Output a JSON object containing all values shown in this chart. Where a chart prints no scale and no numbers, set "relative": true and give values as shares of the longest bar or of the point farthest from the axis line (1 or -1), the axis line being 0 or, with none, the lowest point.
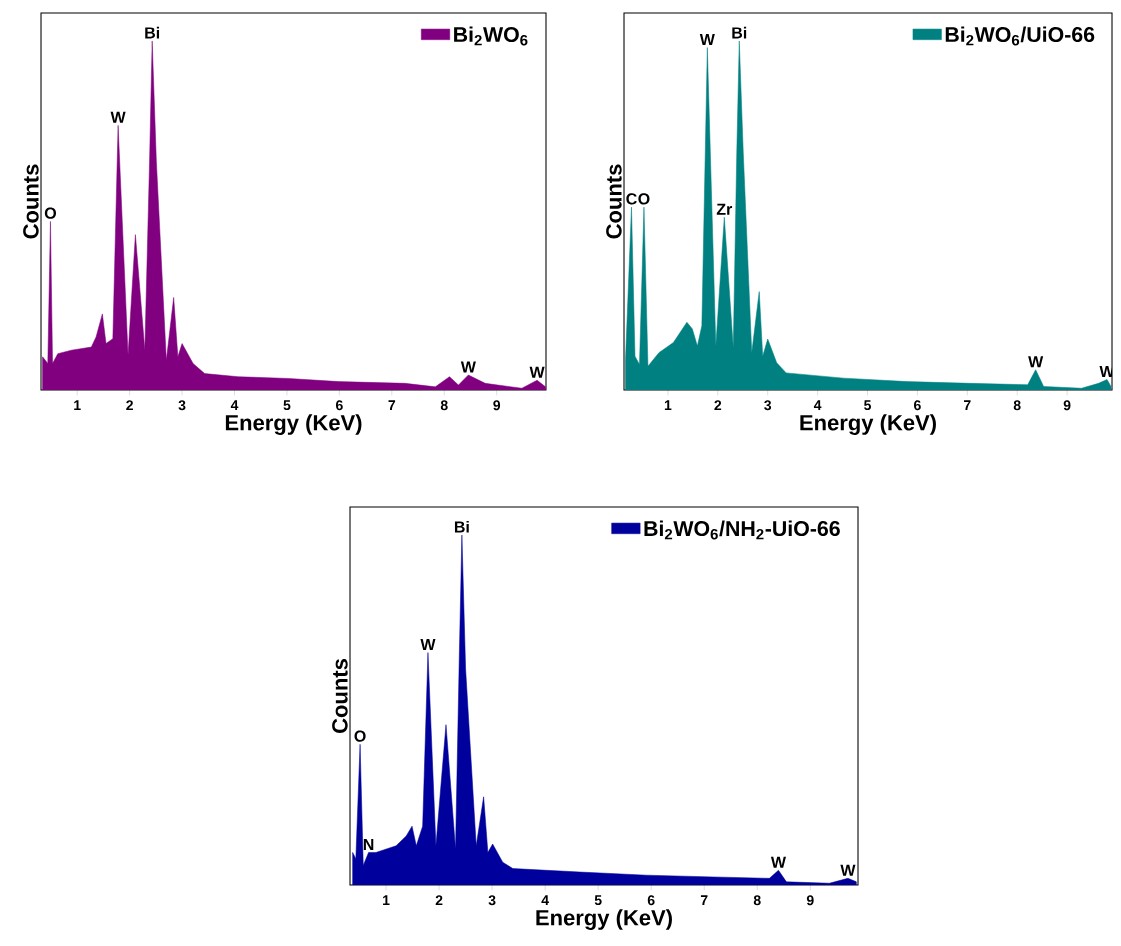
{
  "chart_data": [
    {
      "type": "area",
      "relative": true,
      "xlabel": "Energy (KeV)",
      "ylabel": "Counts",
      "xlim": [
        0.31,
        9.94
      ],
      "xticks": [
        1,
        2,
        3,
        4,
        5,
        6,
        7,
        8,
        9
      ],
      "legend": "top right",
      "series": [
        {
          "name": "Bi$_{2}$WO$_{6}$",
          "color": "#800080",
          "x": [
            0.34,
            0.44,
            0.49,
            0.53,
            0.63,
            0.89,
            1.27,
            1.36,
            1.48,
            1.55,
            1.68,
            1.78,
            1.97,
            2.11,
            2.29,
            2.38,
            2.43,
            2.51,
            2.7,
            2.84,
            2.92,
            3.0,
            3.21,
            3.43,
            4.07,
            5.03,
            5.98,
            7.25,
            7.83,
            8.1,
            8.27,
            8.46,
            8.78,
            9.48,
            9.77,
            9.93
          ],
          "values": [
            0.095,
            0.076,
            0.483,
            0.076,
            0.104,
            0.114,
            0.123,
            0.152,
            0.218,
            0.133,
            0.147,
            0.758,
            0.1,
            0.445,
            0.114,
            0.654,
            1.0,
            0.654,
            0.085,
            0.265,
            0.095,
            0.133,
            0.076,
            0.047,
            0.038,
            0.033,
            0.024,
            0.019,
            0.009,
            0.038,
            0.014,
            0.043,
            0.019,
            0.005,
            0.028,
            0.009
          ]
        }
      ],
      "annotations": [
        {
          "text": "O",
          "x": 0.49,
          "y": 0.483
        },
        {
          "text": "W",
          "x": 1.78,
          "y": 0.758
        },
        {
          "text": "Bi",
          "x": 2.43,
          "y": 1.0
        },
        {
          "text": "W",
          "x": 8.46,
          "y": 0.043
        },
        {
          "text": "W",
          "x": 9.77,
          "y": 0.028
        }
      ]
    },
    {
      "type": "area",
      "relative": true,
      "xlabel": "Energy (KeV)",
      "ylabel": "Counts",
      "xlim": [
        0.12,
        9.9
      ],
      "xticks": [
        1,
        2,
        3,
        4,
        5,
        6,
        7,
        8,
        9
      ],
      "legend": "top right",
      "series": [
        {
          "name": "Bi$_{2}$WO$_{6}$/UiO-66",
          "color": "#008080",
          "x": [
            0.15,
            0.27,
            0.34,
            0.43,
            0.52,
            0.6,
            0.82,
            1.11,
            1.38,
            1.49,
            1.59,
            1.68,
            1.79,
            1.96,
            2.13,
            2.31,
            2.38,
            2.43,
            2.51,
            2.68,
            2.83,
            2.9,
            3.0,
            3.18,
            3.37,
            4.52,
            5.79,
            7.06,
            8.21,
            8.37,
            8.53,
            9.29,
            9.63,
            9.8,
            9.88
          ],
          "values": [
            0.087,
            0.524,
            0.097,
            0.073,
            0.524,
            0.068,
            0.107,
            0.136,
            0.194,
            0.175,
            0.126,
            0.184,
            0.981,
            0.126,
            0.495,
            0.121,
            0.68,
            1.0,
            0.68,
            0.107,
            0.282,
            0.097,
            0.146,
            0.078,
            0.049,
            0.034,
            0.024,
            0.019,
            0.015,
            0.058,
            0.01,
            0.005,
            0.019,
            0.03,
            0.01
          ]
        }
      ],
      "annotations": [
        {
          "text": "C",
          "x": 0.27,
          "y": 0.524
        },
        {
          "text": "O",
          "x": 0.52,
          "y": 0.524
        },
        {
          "text": "W",
          "x": 1.79,
          "y": 0.981
        },
        {
          "text": "Zr",
          "x": 2.13,
          "y": 0.495
        },
        {
          "text": "Bi",
          "x": 2.43,
          "y": 1.0
        },
        {
          "text": "W",
          "x": 8.37,
          "y": 0.058
        },
        {
          "text": "W",
          "x": 9.8,
          "y": 0.03
        }
      ]
    },
    {
      "type": "area",
      "relative": true,
      "xlabel": "Energy (KeV)",
      "ylabel": "Counts",
      "xlim": [
        0.32,
        9.9
      ],
      "xticks": [
        1,
        2,
        3,
        4,
        5,
        6,
        7,
        8,
        9
      ],
      "legend": "top right",
      "series": [
        {
          "name": "Bi$_{2}$WO$_{6}$/NH$_{2}$-UiO-66",
          "color": "#00009c",
          "x": [
            0.37,
            0.43,
            0.51,
            0.57,
            0.67,
            0.81,
            1.19,
            1.38,
            1.49,
            1.57,
            1.69,
            1.79,
            1.94,
            2.13,
            2.31,
            2.38,
            2.43,
            2.5,
            2.7,
            2.84,
            2.92,
            3.01,
            3.2,
            3.39,
            4.65,
            5.91,
            7.16,
            8.23,
            8.4,
            8.55,
            9.36,
            9.71,
            9.87
          ],
          "values": [
            0.093,
            0.075,
            0.402,
            0.056,
            0.093,
            0.093,
            0.112,
            0.14,
            0.168,
            0.112,
            0.168,
            0.664,
            0.112,
            0.458,
            0.103,
            0.645,
            1.0,
            0.617,
            0.112,
            0.252,
            0.093,
            0.117,
            0.065,
            0.047,
            0.037,
            0.028,
            0.023,
            0.019,
            0.042,
            0.009,
            0.005,
            0.019,
            0.009
          ]
        }
      ],
      "annotations": [
        {
          "text": "O",
          "x": 0.51,
          "y": 0.402
        },
        {
          "text": "N",
          "x": 0.67,
          "y": 0.093
        },
        {
          "text": "W",
          "x": 1.79,
          "y": 0.664
        },
        {
          "text": "Bi",
          "x": 2.43,
          "y": 1.0
        },
        {
          "text": "W",
          "x": 8.4,
          "y": 0.042
        },
        {
          "text": "W",
          "x": 9.71,
          "y": 0.019
        }
      ]
    }
  ]
}
